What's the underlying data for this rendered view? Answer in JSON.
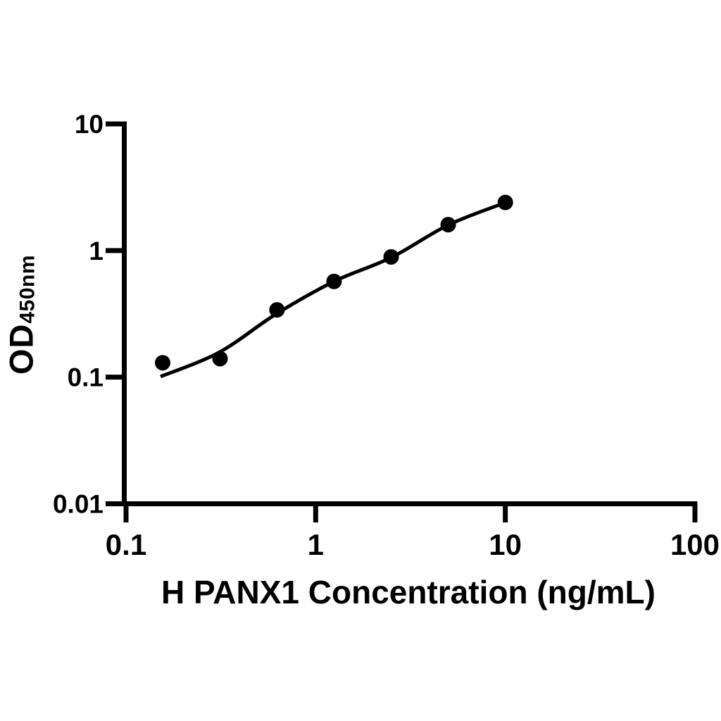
{
  "chart_data": {
    "type": "scatter",
    "subtype": "elisa-standard-curve",
    "xlabel": "H PANX1 Concentration (ng/mL)",
    "ylabel": "OD",
    "ylabel_subscript": "450nm",
    "x_scale": "log",
    "y_scale": "log",
    "xlim": [
      0.1,
      100
    ],
    "ylim": [
      0.01,
      10
    ],
    "x_tick_labels": [
      "0.1",
      "1",
      "10",
      "100"
    ],
    "y_tick_labels": [
      "10",
      "1",
      "0.1",
      "0.01"
    ],
    "grid": false,
    "legend": false,
    "points": [
      {
        "x": 0.156,
        "y": 0.13
      },
      {
        "x": 0.313,
        "y": 0.14
      },
      {
        "x": 0.625,
        "y": 0.34
      },
      {
        "x": 1.25,
        "y": 0.57
      },
      {
        "x": 2.5,
        "y": 0.89
      },
      {
        "x": 5,
        "y": 1.6
      },
      {
        "x": 10,
        "y": 2.4
      }
    ],
    "fit_curve": [
      [
        0.152,
        0.101
      ],
      [
        0.31,
        0.157
      ],
      [
        0.62,
        0.316
      ],
      [
        1.25,
        0.57
      ],
      [
        2.5,
        0.88
      ],
      [
        5,
        1.59
      ],
      [
        10,
        2.39
      ]
    ],
    "colors": {
      "line": "#000000",
      "marker": "#000000",
      "axis": "#000000",
      "text": "#000000",
      "background": "#ffffff"
    }
  }
}
